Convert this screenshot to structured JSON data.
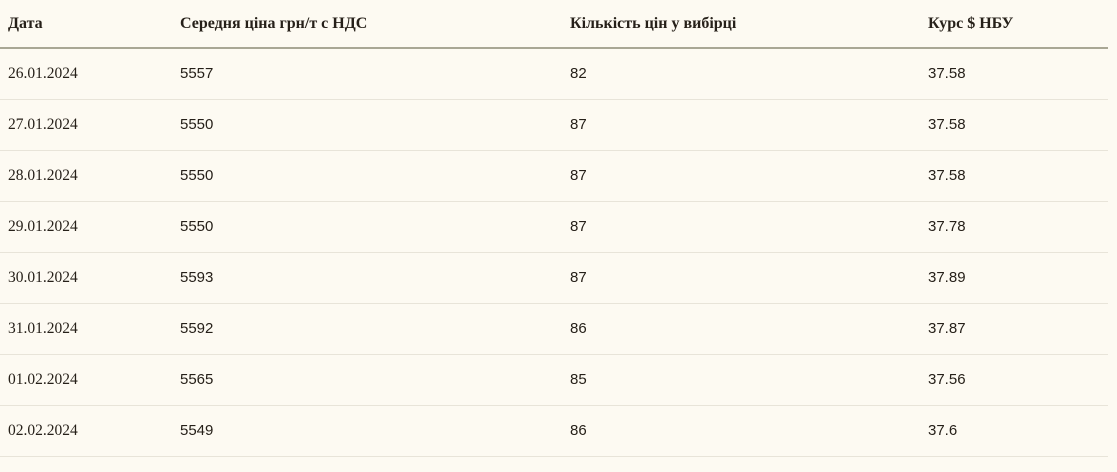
{
  "colors": {
    "bg": "#fdfaf2",
    "row-line": "#e8e4d9",
    "header-line": "#a9a795",
    "text": "#262019"
  },
  "table": {
    "columns": [
      {
        "label": "Дата"
      },
      {
        "label": "Середня ціна грн/т с НДС"
      },
      {
        "label": "Кількість цін у вибірці"
      },
      {
        "label": "Курс $ НБУ"
      }
    ],
    "rows": [
      {
        "date": "26.01.2024",
        "avg_price": "5557",
        "sample_count": "82",
        "usd_rate": "37.58"
      },
      {
        "date": "27.01.2024",
        "avg_price": "5550",
        "sample_count": "87",
        "usd_rate": "37.58"
      },
      {
        "date": "28.01.2024",
        "avg_price": "5550",
        "sample_count": "87",
        "usd_rate": "37.58"
      },
      {
        "date": "29.01.2024",
        "avg_price": "5550",
        "sample_count": "87",
        "usd_rate": "37.78"
      },
      {
        "date": "30.01.2024",
        "avg_price": "5593",
        "sample_count": "87",
        "usd_rate": "37.89"
      },
      {
        "date": "31.01.2024",
        "avg_price": "5592",
        "sample_count": "86",
        "usd_rate": "37.87"
      },
      {
        "date": "01.02.2024",
        "avg_price": "5565",
        "sample_count": "85",
        "usd_rate": "37.56"
      },
      {
        "date": "02.02.2024",
        "avg_price": "5549",
        "sample_count": "86",
        "usd_rate": "37.6"
      }
    ]
  }
}
